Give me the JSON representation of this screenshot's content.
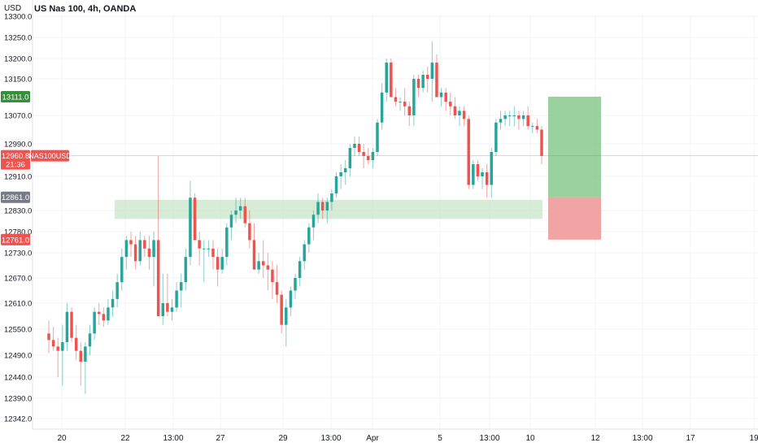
{
  "chart_data": {
    "type": "candlestick",
    "title": "US Nas 100, 4h, OANDA",
    "y_unit": "USD",
    "ylim": [
      12320,
      13320
    ],
    "y_ticks": [
      13300.0,
      13250.0,
      13200.0,
      13150.0,
      13070.0,
      12990.0,
      12910.0,
      12830.0,
      12780.0,
      12730.0,
      12670.0,
      12610.0,
      12550.0,
      12490.0,
      12440.0,
      12390.0,
      12342.0
    ],
    "x_ticks": [
      "20",
      "22",
      "13:00",
      "27",
      "29",
      "13:00",
      "Apr",
      "5",
      "13:00",
      "10",
      "12",
      "13:00",
      "17",
      "19"
    ],
    "colors": {
      "up": "#26a69a",
      "down": "#ef5350"
    },
    "price_labels": [
      {
        "label": "13111.0",
        "price": 13111.0,
        "color": "#388e3c"
      },
      {
        "label": "12960.8",
        "sub": "21:36",
        "price": 12960.8,
        "color": "#ef5350",
        "tag": "NAS100USD"
      },
      {
        "label": "12861.0",
        "price": 12861.0,
        "color": "#787b86"
      },
      {
        "label": "12761.0",
        "price": 12761.0,
        "color": "#ef5350"
      }
    ],
    "current_price": 12960.8,
    "support_zone": {
      "from": 12810,
      "to": 12855
    },
    "position": {
      "entry": 12861.0,
      "target": 13111.0,
      "stop": 12761.0
    },
    "candles": [
      [
        12540,
        12570,
        12495,
        12525
      ],
      [
        12525,
        12555,
        12500,
        12510
      ],
      [
        12510,
        12530,
        12440,
        12500
      ],
      [
        12500,
        12560,
        12420,
        12520
      ],
      [
        12520,
        12610,
        12500,
        12590
      ],
      [
        12590,
        12600,
        12520,
        12530
      ],
      [
        12530,
        12560,
        12480,
        12500
      ],
      [
        12500,
        12520,
        12420,
        12475
      ],
      [
        12475,
        12520,
        12400,
        12510
      ],
      [
        12510,
        12560,
        12490,
        12540
      ],
      [
        12540,
        12600,
        12525,
        12590
      ],
      [
        12590,
        12610,
        12560,
        12585
      ],
      [
        12585,
        12600,
        12555,
        12570
      ],
      [
        12570,
        12620,
        12560,
        12600
      ],
      [
        12600,
        12640,
        12580,
        12620
      ],
      [
        12620,
        12680,
        12600,
        12660
      ],
      [
        12660,
        12740,
        12640,
        12720
      ],
      [
        12720,
        12770,
        12690,
        12760
      ],
      [
        12760,
        12780,
        12720,
        12750
      ],
      [
        12750,
        12770,
        12690,
        12710
      ],
      [
        12710,
        12780,
        12700,
        12760
      ],
      [
        12760,
        12770,
        12720,
        12740
      ],
      [
        12740,
        12770,
        12690,
        12720
      ],
      [
        12720,
        12780,
        12650,
        12760
      ],
      [
        12760,
        12960,
        12580,
        12580
      ],
      [
        12580,
        12680,
        12560,
        12610
      ],
      [
        12610,
        12680,
        12580,
        12590
      ],
      [
        12590,
        12620,
        12570,
        12600
      ],
      [
        12600,
        12660,
        12590,
        12640
      ],
      [
        12640,
        12680,
        12600,
        12660
      ],
      [
        12660,
        12740,
        12640,
        12720
      ],
      [
        12720,
        12900,
        12700,
        12860
      ],
      [
        12860,
        12870,
        12760,
        12760
      ],
      [
        12760,
        12780,
        12700,
        12740
      ],
      [
        12740,
        12760,
        12660,
        12740
      ],
      [
        12740,
        12760,
        12720,
        12740
      ],
      [
        12740,
        12760,
        12690,
        12720
      ],
      [
        12720,
        12740,
        12650,
        12690
      ],
      [
        12690,
        12740,
        12680,
        12720
      ],
      [
        12720,
        12800,
        12700,
        12790
      ],
      [
        12790,
        12830,
        12760,
        12820
      ],
      [
        12820,
        12860,
        12800,
        12830
      ],
      [
        12830,
        12860,
        12810,
        12840
      ],
      [
        12840,
        12860,
        12790,
        12800
      ],
      [
        12800,
        12830,
        12740,
        12760
      ],
      [
        12760,
        12800,
        12690,
        12690
      ],
      [
        12690,
        12730,
        12680,
        12710
      ],
      [
        12710,
        12760,
        12670,
        12700
      ],
      [
        12700,
        12730,
        12640,
        12690
      ],
      [
        12690,
        12710,
        12620,
        12660
      ],
      [
        12660,
        12700,
        12610,
        12630
      ],
      [
        12630,
        12640,
        12540,
        12560
      ],
      [
        12560,
        12620,
        12510,
        12600
      ],
      [
        12600,
        12650,
        12580,
        12640
      ],
      [
        12640,
        12680,
        12620,
        12670
      ],
      [
        12670,
        12720,
        12650,
        12710
      ],
      [
        12710,
        12760,
        12690,
        12750
      ],
      [
        12750,
        12800,
        12730,
        12790
      ],
      [
        12790,
        12830,
        12760,
        12820
      ],
      [
        12820,
        12870,
        12800,
        12850
      ],
      [
        12850,
        12860,
        12810,
        12830
      ],
      [
        12830,
        12860,
        12800,
        12850
      ],
      [
        12850,
        12880,
        12830,
        12870
      ],
      [
        12870,
        12920,
        12860,
        12910
      ],
      [
        12910,
        12940,
        12880,
        12920
      ],
      [
        12920,
        12950,
        12890,
        12930
      ],
      [
        12930,
        12990,
        12910,
        12980
      ],
      [
        12980,
        13010,
        12960,
        12990
      ],
      [
        12990,
        13010,
        12960,
        12970
      ],
      [
        12970,
        12990,
        12930,
        12960
      ],
      [
        12960,
        12980,
        12940,
        12950
      ],
      [
        12950,
        12980,
        12930,
        12970
      ],
      [
        12970,
        13060,
        12960,
        13050
      ],
      [
        13050,
        13140,
        13030,
        13120
      ],
      [
        13120,
        13200,
        13100,
        13190
      ],
      [
        13190,
        13200,
        13110,
        13110
      ],
      [
        13110,
        13130,
        13090,
        13100
      ],
      [
        13100,
        13110,
        13080,
        13100
      ],
      [
        13100,
        13130,
        13070,
        13090
      ],
      [
        13090,
        13100,
        13040,
        13070
      ],
      [
        13070,
        13160,
        13040,
        13150
      ],
      [
        13150,
        13160,
        13110,
        13130
      ],
      [
        13130,
        13170,
        13120,
        13160
      ],
      [
        13160,
        13180,
        13120,
        13150
      ],
      [
        13150,
        13240,
        13100,
        13190
      ],
      [
        13190,
        13210,
        13110,
        13110
      ],
      [
        13110,
        13130,
        13090,
        13120
      ],
      [
        13120,
        13130,
        13080,
        13100
      ],
      [
        13100,
        13120,
        13070,
        13090
      ],
      [
        13090,
        13110,
        13060,
        13070
      ],
      [
        13070,
        13090,
        13040,
        13080
      ],
      [
        13080,
        13090,
        13040,
        13060
      ],
      [
        13060,
        13070,
        12880,
        12890
      ],
      [
        12890,
        12950,
        12880,
        12940
      ],
      [
        12940,
        12950,
        12900,
        12910
      ],
      [
        12910,
        12930,
        12880,
        12920
      ],
      [
        12920,
        12940,
        12860,
        12890
      ],
      [
        12890,
        12980,
        12860,
        12970
      ],
      [
        12970,
        13060,
        12960,
        13050
      ],
      [
        13050,
        13080,
        13030,
        13060
      ],
      [
        13060,
        13080,
        13040,
        13070
      ],
      [
        13070,
        13080,
        13040,
        13070
      ],
      [
        13070,
        13090,
        13040,
        13070
      ],
      [
        13070,
        13080,
        13030,
        13060
      ],
      [
        13060,
        13080,
        13040,
        13070
      ],
      [
        13070,
        13090,
        13030,
        13040
      ],
      [
        13040,
        13050,
        13020,
        13040
      ],
      [
        13040,
        13060,
        13020,
        13030
      ],
      [
        13030,
        13040,
        12940,
        12960
      ]
    ]
  }
}
